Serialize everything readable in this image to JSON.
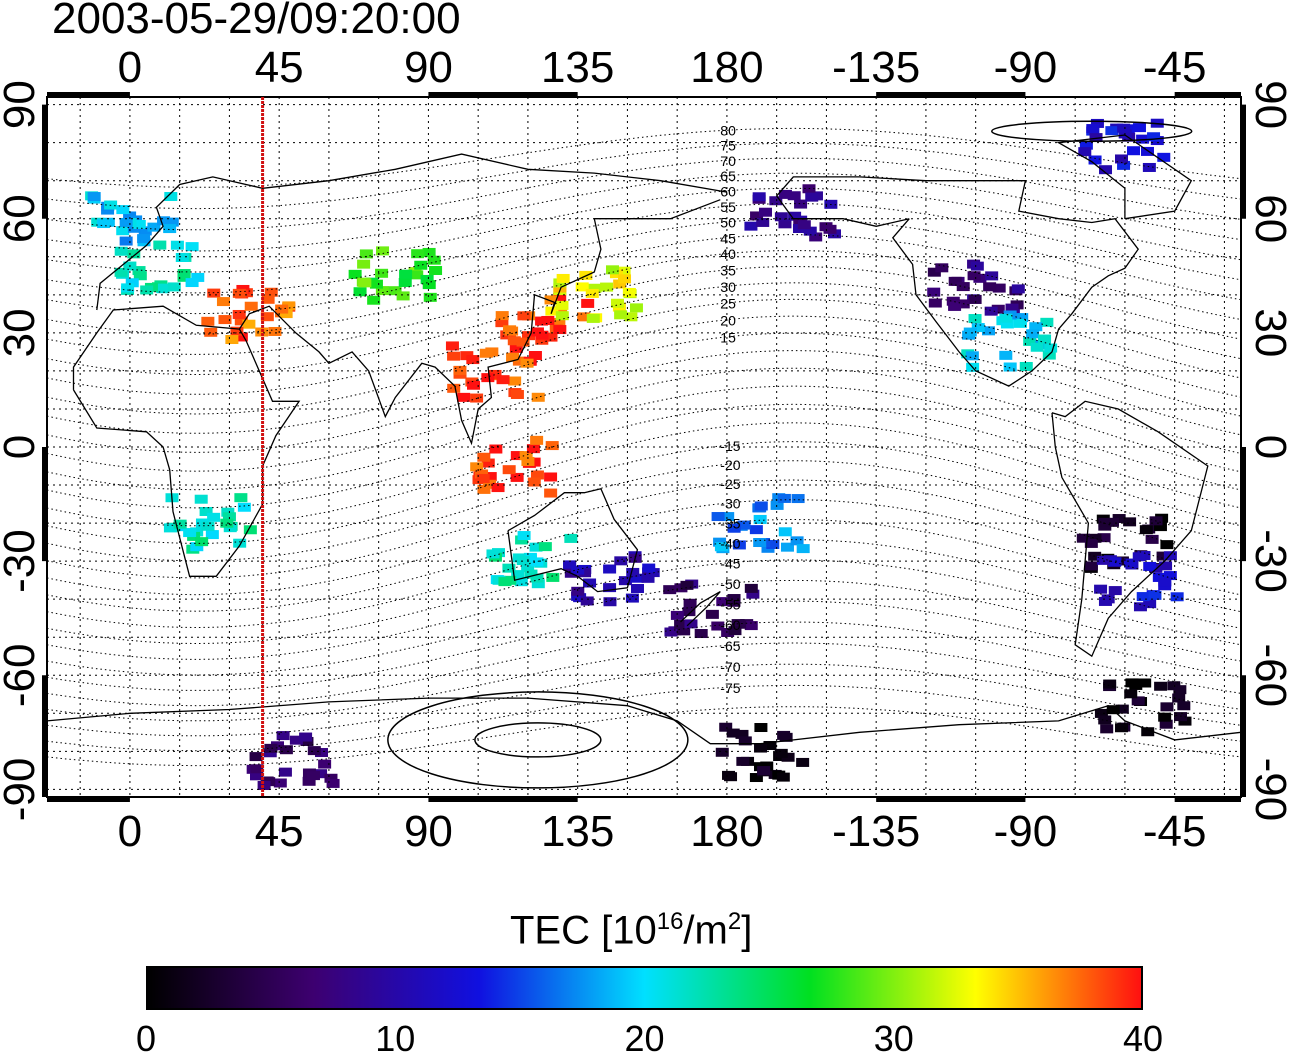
{
  "title": "2003-05-29/09:20:00",
  "map": {
    "lon_top_ticks": [
      "0",
      "45",
      "90",
      "135",
      "180",
      "-135",
      "-90",
      "-45"
    ],
    "lon_bottom_ticks": [
      "0",
      "45",
      "90",
      "135",
      "180",
      "-135",
      "-90",
      "-45"
    ],
    "lat_left_ticks": [
      "90",
      "60",
      "30",
      "0",
      "-30",
      "-60",
      "-90"
    ],
    "lat_right_ticks": [
      "90",
      "60",
      "30",
      "0",
      "-30",
      "-60",
      "-90"
    ],
    "lon_range": [
      -25,
      335
    ],
    "lat_range": [
      -92,
      92
    ],
    "marker_lon": 40,
    "marker_color": "#d01010",
    "mlat_labels": [
      "80",
      "75",
      "70",
      "65",
      "60",
      "55",
      "50",
      "45",
      "40",
      "35",
      "30",
      "25",
      "20",
      "15",
      "-15",
      "-20",
      "-25",
      "-30",
      "-35",
      "-40",
      "-45",
      "-50",
      "-55",
      "-60",
      "-65",
      "-70",
      "-75"
    ]
  },
  "colorbar": {
    "title_text": "TEC  [10",
    "title_sup1": "16",
    "title_mid": "/m",
    "title_sup2": "2",
    "title_end": "]",
    "min": 0,
    "max": 40,
    "ticks": [
      "0",
      "10",
      "20",
      "30",
      "40"
    ],
    "colors": [
      "#000000",
      "#3d0070",
      "#1010e0",
      "#00e0ff",
      "#00e020",
      "#ffff00",
      "#ff1010"
    ]
  },
  "tec_regions": [
    {
      "lon": 0,
      "lat": 60,
      "tec": 19
    },
    {
      "lon": 10,
      "lat": 48,
      "tec": 22
    },
    {
      "lon": 35,
      "lat": 35,
      "tec": 38
    },
    {
      "lon": 80,
      "lat": 45,
      "tec": 28
    },
    {
      "lon": 125,
      "lat": 33,
      "tec": 39
    },
    {
      "lon": 110,
      "lat": 20,
      "tec": 39
    },
    {
      "lon": 115,
      "lat": -5,
      "tec": 39
    },
    {
      "lon": 140,
      "lat": 40,
      "tec": 33
    },
    {
      "lon": 200,
      "lat": 62,
      "tec": 8
    },
    {
      "lon": 255,
      "lat": 42,
      "tec": 7
    },
    {
      "lon": 265,
      "lat": 28,
      "tec": 20
    },
    {
      "lon": 300,
      "lat": -25,
      "tec": 2
    },
    {
      "lon": 305,
      "lat": -35,
      "tec": 12
    },
    {
      "lon": 145,
      "lat": -35,
      "tec": 10
    },
    {
      "lon": 175,
      "lat": -42,
      "tec": 6
    },
    {
      "lon": 25,
      "lat": -20,
      "tec": 22
    },
    {
      "lon": 120,
      "lat": -30,
      "tec": 22
    },
    {
      "lon": 190,
      "lat": -20,
      "tec": 17
    },
    {
      "lon": 300,
      "lat": 80,
      "tec": 12
    },
    {
      "lon": 305,
      "lat": -68,
      "tec": 1
    },
    {
      "lon": 50,
      "lat": -82,
      "tec": 6
    },
    {
      "lon": 190,
      "lat": -80,
      "tec": 1
    }
  ]
}
